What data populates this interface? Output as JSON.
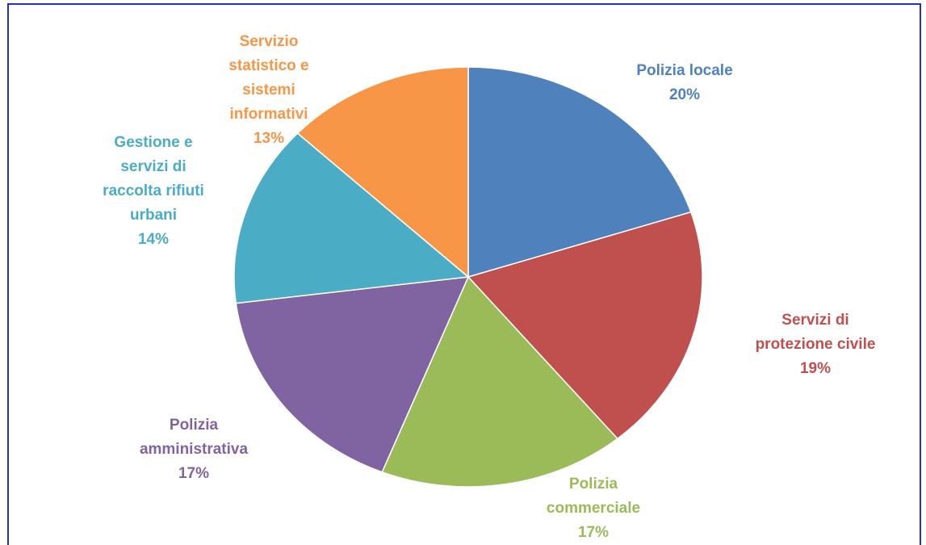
{
  "chart_data": {
    "type": "pie",
    "categories": [
      "Polizia locale",
      "Servizi di protezione civile",
      "Polizia commerciale",
      "Polizia amministrativa",
      "Gestione e servizi di raccolta rifiuti urbani",
      "Servizio statistico e sistemi informativi"
    ],
    "values": [
      20,
      19,
      17,
      17,
      14,
      13
    ],
    "value_labels": [
      "20%",
      "19%",
      "17%",
      "17%",
      "14%",
      "13%"
    ],
    "colors": [
      "#4f81bd",
      "#c0504d",
      "#9bbb59",
      "#8064a2",
      "#4bacc6",
      "#f79646"
    ]
  }
}
